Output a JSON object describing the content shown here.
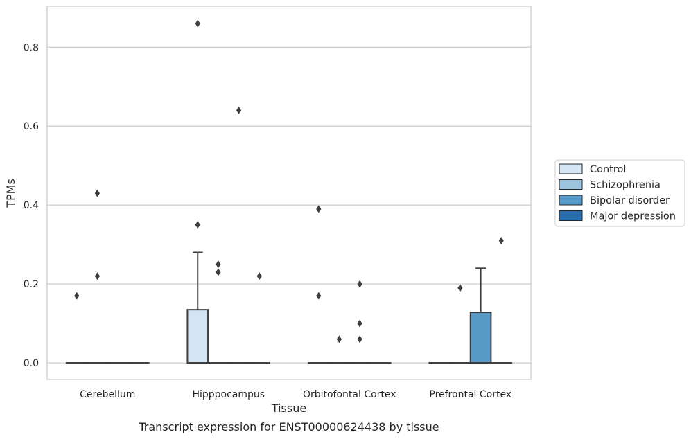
{
  "chart_data": {
    "type": "box",
    "xlabel": "Tissue",
    "ylabel": "TPMs",
    "caption": "Transcript expression for ENST00000624438 by tissue",
    "ylim": [
      -0.042,
      0.904
    ],
    "yticks": [
      0.0,
      0.2,
      0.4,
      0.6,
      0.8
    ],
    "ytick_labels": [
      "0.0",
      "0.2",
      "0.4",
      "0.6",
      "0.8"
    ],
    "grid": "horizontal",
    "legend_position": "right",
    "categories": [
      "Cerebellum",
      "Hipppocampus",
      "Orbitofontal Cortex",
      "Prefrontal Cortex"
    ],
    "series": [
      {
        "name": "Control",
        "color": "#d6e5f3",
        "boxes": [
          {
            "q1": 0,
            "median": 0,
            "q3": 0,
            "whislo": 0,
            "whishi": 0,
            "fliers": [
              0.17
            ]
          },
          {
            "q1": 0,
            "median": 0,
            "q3": 0.135,
            "whislo": 0,
            "whishi": 0.28,
            "fliers": [
              0.86,
              0.35
            ]
          },
          {
            "q1": 0,
            "median": 0,
            "q3": 0,
            "whislo": 0,
            "whishi": 0,
            "fliers": [
              0.39,
              0.17
            ]
          },
          {
            "q1": 0,
            "median": 0,
            "q3": 0,
            "whislo": 0,
            "whishi": 0,
            "fliers": []
          }
        ]
      },
      {
        "name": "Schizophrenia",
        "color": "#9cc4de",
        "boxes": [
          {
            "q1": 0,
            "median": 0,
            "q3": 0,
            "whislo": 0,
            "whishi": 0,
            "fliers": [
              0.43,
              0.22
            ]
          },
          {
            "q1": 0,
            "median": 0,
            "q3": 0,
            "whislo": 0,
            "whishi": 0,
            "fliers": [
              0.25,
              0.23
            ]
          },
          {
            "q1": 0,
            "median": 0,
            "q3": 0,
            "whislo": 0,
            "whishi": 0,
            "fliers": [
              0.06
            ]
          },
          {
            "q1": 0,
            "median": 0,
            "q3": 0,
            "whislo": 0,
            "whishi": 0,
            "fliers": [
              0.19
            ]
          }
        ]
      },
      {
        "name": "Bipolar disorder",
        "color": "#5799c7",
        "boxes": [
          {
            "q1": 0,
            "median": 0,
            "q3": 0,
            "whislo": 0,
            "whishi": 0,
            "fliers": []
          },
          {
            "q1": 0,
            "median": 0,
            "q3": 0,
            "whislo": 0,
            "whishi": 0,
            "fliers": [
              0.64
            ]
          },
          {
            "q1": 0,
            "median": 0,
            "q3": 0,
            "whislo": 0,
            "whishi": 0,
            "fliers": [
              0.2,
              0.1,
              0.06
            ]
          },
          {
            "q1": 0,
            "median": 0,
            "q3": 0.128,
            "whislo": 0,
            "whishi": 0.24,
            "fliers": []
          }
        ]
      },
      {
        "name": "Major depression",
        "color": "#2a6ead",
        "boxes": [
          {
            "q1": 0,
            "median": 0,
            "q3": 0,
            "whislo": 0,
            "whishi": 0,
            "fliers": []
          },
          {
            "q1": 0,
            "median": 0,
            "q3": 0,
            "whislo": 0,
            "whishi": 0,
            "fliers": [
              0.22
            ]
          },
          {
            "q1": 0,
            "median": 0,
            "q3": 0,
            "whislo": 0,
            "whishi": 0,
            "fliers": []
          },
          {
            "q1": 0,
            "median": 0,
            "q3": 0,
            "whislo": 0,
            "whishi": 0,
            "fliers": [
              0.31
            ]
          }
        ]
      }
    ]
  }
}
